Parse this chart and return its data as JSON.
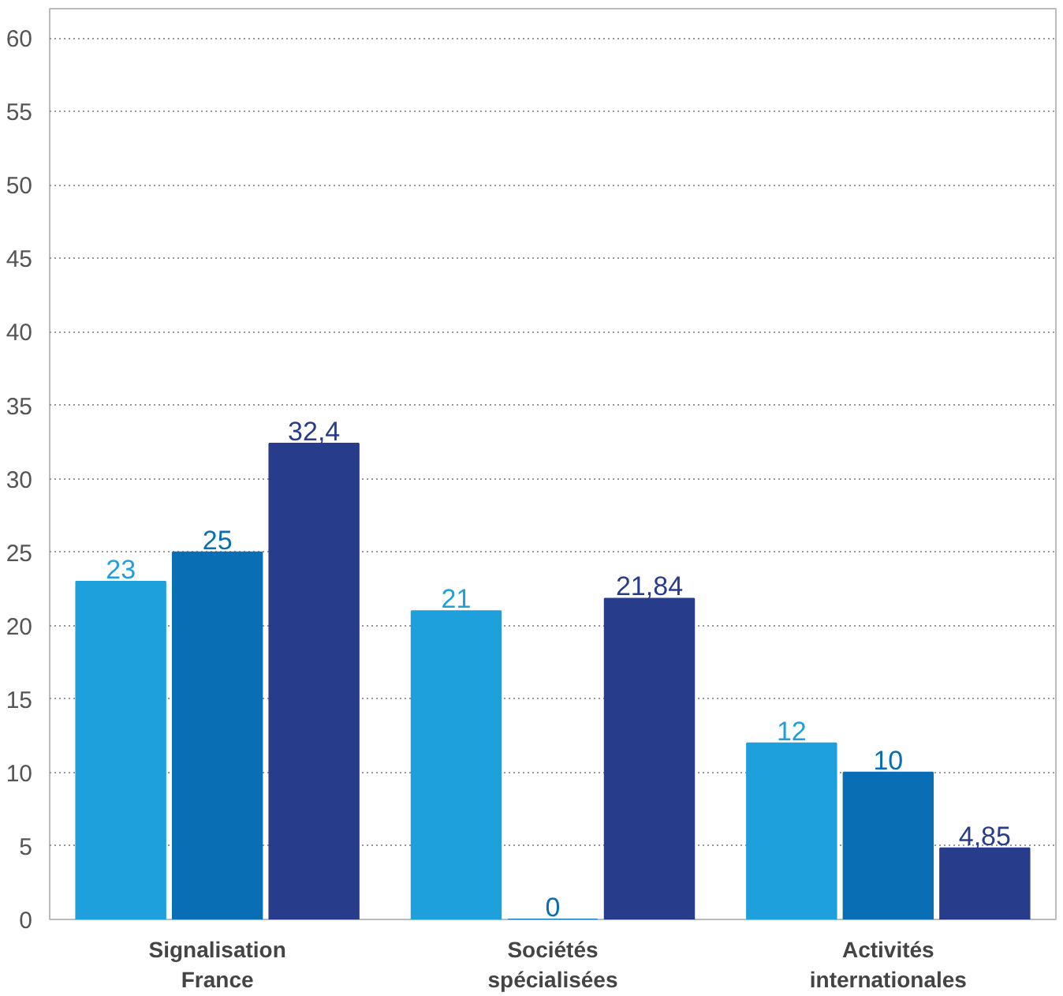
{
  "chart_data": {
    "type": "bar",
    "categories": [
      "Signalisation France",
      "Sociétés spécialisées",
      "Activités internationales"
    ],
    "series": [
      {
        "color": "#1ea0dc",
        "values": [
          23,
          21,
          12
        ],
        "value_labels": [
          "23",
          "21",
          "12"
        ]
      },
      {
        "color": "#0a6eb4",
        "values": [
          25,
          0,
          10
        ],
        "value_labels": [
          "25",
          "0",
          "10"
        ]
      },
      {
        "color": "#283c8c",
        "values": [
          32.4,
          21.84,
          4.85
        ],
        "value_labels": [
          "32,4",
          "21,84",
          "4,85"
        ]
      }
    ],
    "ylim": [
      0,
      62
    ],
    "yticks": [
      0,
      5,
      10,
      15,
      20,
      25,
      30,
      35,
      40,
      45,
      50,
      55,
      60
    ],
    "grid": "y"
  }
}
